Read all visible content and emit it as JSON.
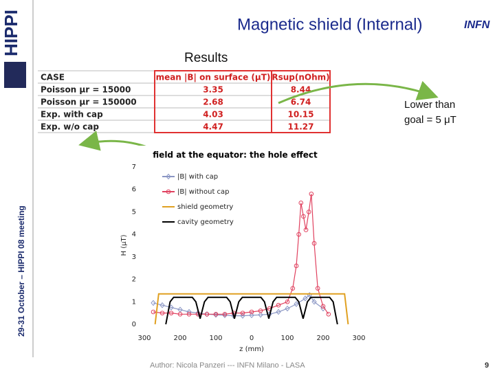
{
  "header": {
    "title": "Magnetic shield (Internal)",
    "side_text": "29-31 October – HIPPI 08 meeting",
    "logo_left": "HIPPI",
    "logo_right": "INFN"
  },
  "section_title": "Results",
  "table": {
    "header": [
      "CASE",
      "mean |B| on surface (μT)",
      "Rsup(nOhm)"
    ],
    "rows": [
      [
        "Poisson μr = 15000",
        "3.35",
        "8.44"
      ],
      [
        "Poisson μr = 150000",
        "2.68",
        "6.74"
      ],
      [
        "Exp. with cap",
        "4.03",
        "10.15"
      ],
      [
        "Exp. w/o cap",
        "4.47",
        "11.27"
      ]
    ]
  },
  "callout": [
    "Lower than",
    "goal = 5 μT"
  ],
  "chart_data": {
    "type": "line",
    "title": "field at the equator: the hole effect",
    "x_label": "z (mm)",
    "y_label": "H (μT)",
    "xlim": [
      -300,
      300
    ],
    "ylim": [
      0,
      7
    ],
    "xticks": [
      {
        "value": -300,
        "label": "300"
      },
      {
        "value": -200,
        "label": "200"
      },
      {
        "value": -100,
        "label": "100"
      },
      0,
      100,
      200,
      300
    ],
    "yticks": [
      0,
      1,
      2,
      3,
      4,
      5,
      6,
      7
    ],
    "grid": false,
    "legend": "upper left",
    "series": [
      {
        "name": "|B| with cap",
        "color": "#8a96c4",
        "marker": "diamond",
        "x": [
          -275,
          -250,
          -225,
          -200,
          -175,
          -150,
          -125,
          -100,
          -75,
          -50,
          -25,
          0,
          25,
          50,
          75,
          100,
          125,
          150,
          162,
          175,
          200
        ],
        "values": [
          0.95,
          0.85,
          0.75,
          0.65,
          0.55,
          0.5,
          0.45,
          0.42,
          0.4,
          0.38,
          0.38,
          0.4,
          0.42,
          0.45,
          0.55,
          0.7,
          0.9,
          1.15,
          1.3,
          1.0,
          0.7
        ]
      },
      {
        "name": "|B| without cap",
        "color": "#e0405e",
        "marker": "circle",
        "x": [
          -275,
          -250,
          -225,
          -200,
          -175,
          -150,
          -125,
          -100,
          -75,
          -50,
          -25,
          0,
          25,
          50,
          75,
          100,
          115,
          125,
          132,
          138,
          145,
          152,
          160,
          167,
          175,
          185,
          200,
          215
        ],
        "values": [
          0.55,
          0.5,
          0.5,
          0.45,
          0.45,
          0.45,
          0.45,
          0.45,
          0.45,
          0.5,
          0.5,
          0.55,
          0.6,
          0.7,
          0.85,
          1.0,
          1.6,
          2.6,
          4.0,
          5.4,
          4.8,
          4.2,
          5.0,
          5.8,
          3.6,
          1.6,
          0.8,
          0.45
        ]
      },
      {
        "name": "shield geometry",
        "color": "#e0a020",
        "marker": "none",
        "x": [
          -270,
          -260,
          260,
          270
        ],
        "values": [
          0,
          1.35,
          1.35,
          0
        ]
      },
      {
        "name": "cavity geometry",
        "color": "#000000",
        "marker": "none",
        "x": [
          -240,
          -228,
          -218,
          -166,
          -156,
          -144,
          -132,
          -122,
          -70,
          -60,
          -48,
          -36,
          -26,
          26,
          36,
          48,
          60,
          70,
          122,
          132,
          144,
          156,
          166,
          218,
          228,
          240
        ],
        "values": [
          0,
          1.0,
          1.2,
          1.2,
          1.0,
          0.25,
          1.0,
          1.2,
          1.2,
          1.0,
          0.25,
          1.0,
          1.2,
          1.2,
          1.0,
          0.25,
          1.0,
          1.2,
          1.2,
          1.0,
          0.25,
          1.0,
          1.2,
          1.2,
          1.0,
          0
        ]
      }
    ]
  },
  "footer": {
    "author": "Author: Nicola Panzeri --- INFN Milano - LASA",
    "page": "9"
  }
}
